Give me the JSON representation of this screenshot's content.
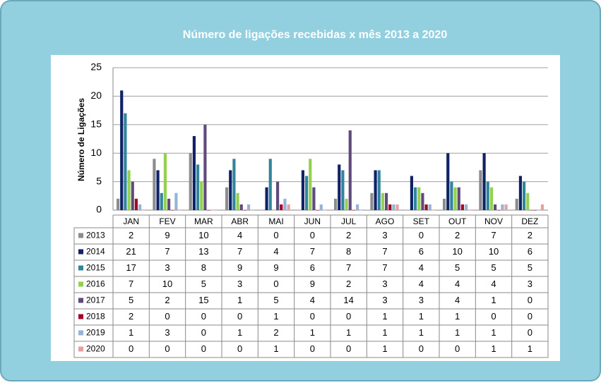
{
  "chart_data": {
    "type": "bar",
    "title": "Número de ligações recebidas x mês  2013 a 2020",
    "ylabel": "Número de Ligações",
    "categories": [
      "JAN",
      "FEV",
      "MAR",
      "ABR",
      "MAI",
      "JUN",
      "JUL",
      "AGO",
      "SET",
      "OUT",
      "NOV",
      "DEZ"
    ],
    "series": [
      {
        "name": "2013",
        "color": "#8c8c8c",
        "values": [
          2,
          9,
          10,
          4,
          0,
          0,
          2,
          3,
          0,
          2,
          7,
          2
        ]
      },
      {
        "name": "2014",
        "color": "#0f2266",
        "values": [
          21,
          7,
          13,
          7,
          4,
          7,
          8,
          7,
          6,
          10,
          10,
          6
        ]
      },
      {
        "name": "2015",
        "color": "#31849b",
        "values": [
          17,
          3,
          8,
          9,
          9,
          6,
          7,
          7,
          4,
          5,
          5,
          5
        ]
      },
      {
        "name": "2016",
        "color": "#92d050",
        "values": [
          7,
          10,
          5,
          3,
          0,
          9,
          2,
          3,
          4,
          4,
          4,
          3
        ]
      },
      {
        "name": "2017",
        "color": "#604a7b",
        "values": [
          5,
          2,
          15,
          1,
          5,
          4,
          14,
          3,
          3,
          4,
          1,
          0
        ]
      },
      {
        "name": "2018",
        "color": "#a50021",
        "values": [
          2,
          0,
          0,
          0,
          1,
          0,
          0,
          1,
          1,
          1,
          0,
          0
        ]
      },
      {
        "name": "2019",
        "color": "#95b3d7",
        "values": [
          1,
          3,
          0,
          1,
          2,
          1,
          1,
          1,
          1,
          1,
          1,
          0
        ]
      },
      {
        "name": "2020",
        "color": "#e6a0a0",
        "values": [
          0,
          0,
          0,
          0,
          1,
          0,
          0,
          1,
          0,
          0,
          1,
          1
        ]
      }
    ],
    "ylim": [
      0,
      25
    ],
    "yticks": [
      0,
      5,
      10,
      15,
      20,
      25
    ],
    "grid": true
  }
}
